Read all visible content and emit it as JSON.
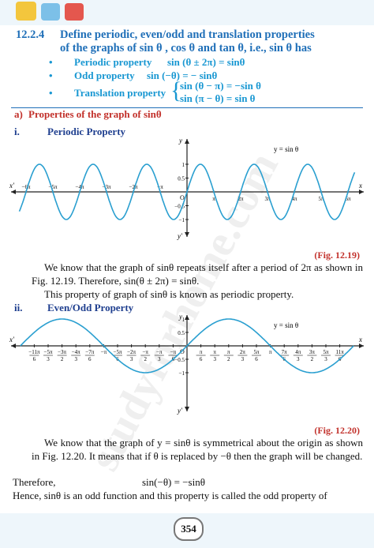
{
  "heading": {
    "number": "12.2.4",
    "line1": "Define periodic, even/odd and translation properties",
    "line2": "of the graphs of sin θ , cos θ and tan θ, i.e., sin θ has"
  },
  "bullets": [
    {
      "label": "Periodic property",
      "formula": "sin (θ ± 2π) = sinθ"
    },
    {
      "label": "Odd property",
      "formula": "sin (−θ) = − sinθ"
    },
    {
      "label": "Translation property",
      "formulas": [
        "sin (θ − π) = −sin θ",
        "sin (π − θ) = sin θ"
      ]
    }
  ],
  "section": {
    "label": "a)",
    "title": "Properties of the graph of sinθ"
  },
  "subsections": [
    {
      "label": "i.",
      "title": "Periodic Property",
      "figure": {
        "x": "x",
        "x_neg": "x'",
        "y": "y",
        "y_neg": "y'",
        "origin": "O",
        "curve_label": "y = sin θ",
        "xticks": [
          "−6π",
          "−5π",
          "−4π",
          "−3π",
          "−2π",
          "−π",
          "π",
          "2π",
          "3π",
          "4π",
          "5π",
          "6π"
        ],
        "yticks": [
          "1",
          "0.5",
          "−0.5",
          "−1"
        ],
        "caption": "(Fig. 12.19)"
      },
      "paragraphs": [
        "We know that the graph of sinθ repeats itself after a period of 2π as shown in Fig. 12.19. Therefore, sin(θ ± 2π) = sinθ.",
        "This property of graph of sinθ is known as periodic property."
      ]
    },
    {
      "label": "ii.",
      "title": "Even/Odd Property",
      "figure": {
        "x": "x",
        "x_neg": "x'",
        "y": "y",
        "y_neg": "y'",
        "origin": "O",
        "curve_label": "y = sin θ",
        "xticks": [
          {
            "num": "−11π",
            "den": "6"
          },
          {
            "num": "−5π",
            "den": "3"
          },
          {
            "num": "−3π",
            "den": "2"
          },
          {
            "num": "−4π",
            "den": "3"
          },
          {
            "num": "−7π",
            "den": "6"
          },
          {
            "num": "−π",
            "den": ""
          },
          {
            "num": "−5π",
            "den": "6"
          },
          {
            "num": "−2π",
            "den": "3"
          },
          {
            "num": "−π",
            "den": "2"
          },
          {
            "num": "−π",
            "den": "3"
          },
          {
            "num": "−π",
            "den": "6"
          },
          {
            "num": "π",
            "den": "6"
          },
          {
            "num": "π",
            "den": "3"
          },
          {
            "num": "π",
            "den": "2"
          },
          {
            "num": "2π",
            "den": "3"
          },
          {
            "num": "5π",
            "den": "6"
          },
          {
            "num": "π",
            "den": ""
          },
          {
            "num": "7π",
            "den": "6"
          },
          {
            "num": "4π",
            "den": "3"
          },
          {
            "num": "3π",
            "den": "2"
          },
          {
            "num": "5π",
            "den": "3"
          },
          {
            "num": "11π",
            "den": "6"
          }
        ],
        "yticks": [
          "1",
          "0.5",
          "−0.5",
          "−1"
        ],
        "caption": "(Fig. 12.20)"
      },
      "paragraphs": [
        "We know that the graph of y = sinθ is symmetrical about the origin as shown in Fig. 12.20. It means that if θ is replaced by −θ then the graph will be changed."
      ],
      "therefore": {
        "word": "Therefore,",
        "formula": "sin(−θ) = −sinθ"
      },
      "closing": "Hence, sinθ is an odd function and this property is called the odd property of"
    }
  ],
  "watermark": "studyforhome.com",
  "page_number": "354"
}
